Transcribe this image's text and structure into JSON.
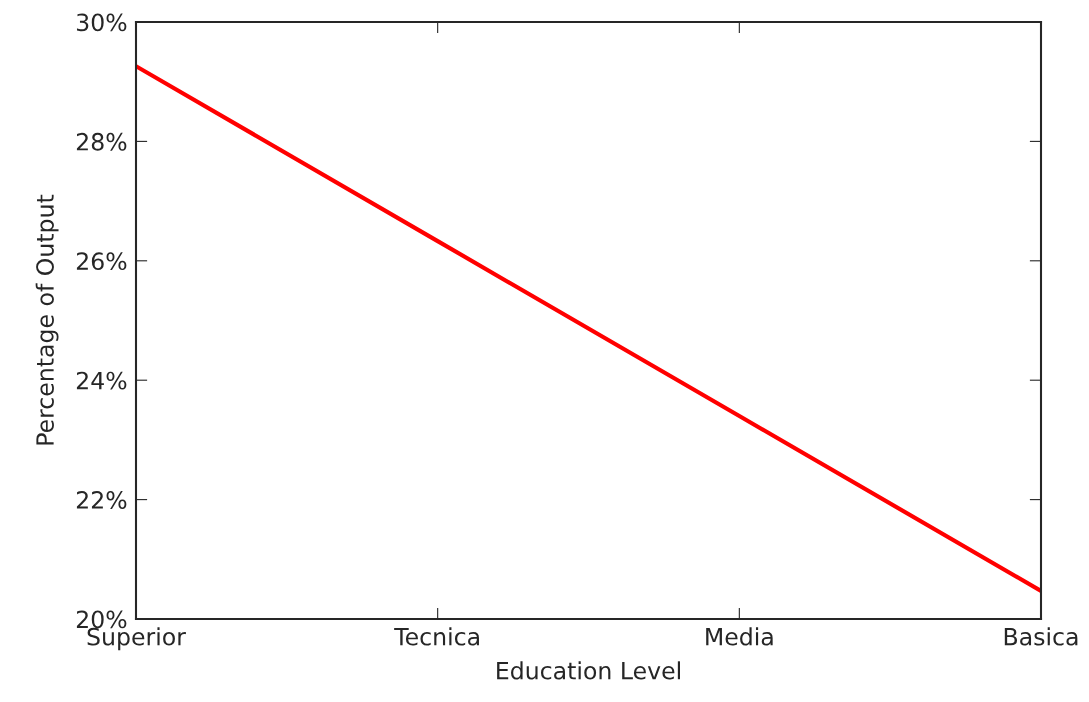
{
  "chart_data": {
    "type": "line",
    "xlabel": "Education Level",
    "ylabel": "Percentage of Output",
    "categories": [
      "Superior",
      "Tecnica",
      "Media",
      "Basica"
    ],
    "series": [
      {
        "color": "#ff0000",
        "values": [
          29.26,
          26.33,
          23.4,
          20.47
        ]
      }
    ],
    "ylim": [
      20,
      30
    ],
    "yticks": [
      {
        "value": 20,
        "label": "20%"
      },
      {
        "value": 22,
        "label": "22%"
      },
      {
        "value": 24,
        "label": "24%"
      },
      {
        "value": 26,
        "label": "26%"
      },
      {
        "value": 28,
        "label": "28%"
      },
      {
        "value": 30,
        "label": "30%"
      }
    ],
    "grid": false,
    "legend": false,
    "marker": "none",
    "line_style": "solid"
  }
}
